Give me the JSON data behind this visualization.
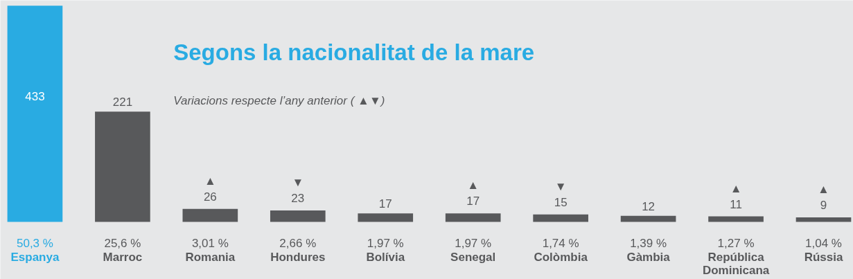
{
  "chart_data": {
    "type": "bar",
    "title": "Segons la nacionalitat de la mare",
    "subtitle": "Variacions respecte l’any anterior ( ▲▼)",
    "categories": [
      "50,3 %\nEspanya",
      "25,6 %\nMarroc",
      "3,01 %\nRomania",
      "2,66 %\nHondures",
      "1,97 %\nBolívia",
      "1,97 %\nSenegal",
      "1,74 %\nColòmbia",
      "1,39 %\nGàmbia",
      "1,27 %\nRepública\nDominicana",
      "1,04 %\nRússia"
    ],
    "values": [
      433,
      221,
      26,
      23,
      17,
      17,
      15,
      12,
      11,
      9
    ],
    "value_labels": [
      "433",
      "221",
      "▲\n26",
      "▼\n23",
      "17",
      "▲\n17",
      "▼\n15",
      "12",
      "▲\n11",
      "▲\n9"
    ],
    "colors": [
      "#29abe2",
      "#58595b",
      "#58595b",
      "#58595b",
      "#58595b",
      "#58595b",
      "#58595b",
      "#58595b",
      "#58595b",
      "#58595b"
    ]
  }
}
